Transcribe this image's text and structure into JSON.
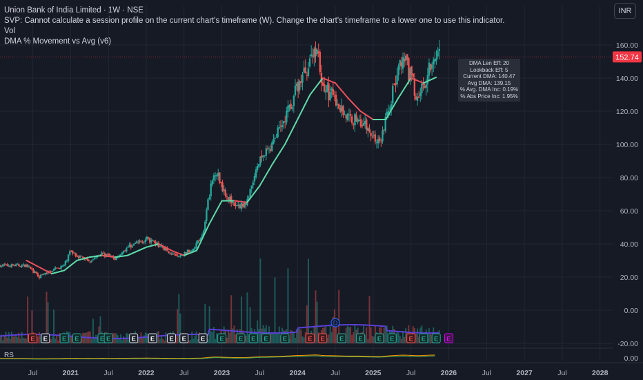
{
  "header": {
    "title": "Union Bank of India Limited · 1W · NSE",
    "svp_message": "SVP: Cannot calculate a session profile on the current chart's timeframe (W). Change the chart's timeframe to a lower one to use this indicator.",
    "vol_label": "Vol",
    "indicator_label": "DMA % Movement vs Avg (v6)",
    "currency_button": "INR"
  },
  "price_badge": "152.74",
  "info_box": {
    "line1": "DMA Len Eff: 20",
    "line2": "Lookback Eff: 5",
    "line3": "Current DMA: 140.47",
    "line4": "Avg DMA: 139.15",
    "line5": "% Avg. DMA Inc: 0.19%",
    "line6": "% Abs Price Inc: 1.95%"
  },
  "rs_pane": {
    "label": "RS",
    "tick_label": "0.00"
  },
  "colors": {
    "background": "#161a25",
    "up_candle": "#26a69a",
    "down_candle": "#ef5350",
    "dma_up": "#5ed9a8",
    "dma_down": "#e8505b",
    "volume_ma": "#5b3fd6",
    "price_badge": "#f23645",
    "grid": "#232734",
    "rs_line_1": "#ff9800",
    "rs_line_2": "#4caf50"
  },
  "chart_data": {
    "type": "candlestick",
    "symbol": "Union Bank of India Limited",
    "interval": "1W",
    "exchange": "NSE",
    "x_tick_labels": [
      "Jul",
      "2021",
      "Jul",
      "2022",
      "Jul",
      "2023",
      "Jul",
      "2024",
      "Jul",
      "2025",
      "Jul",
      "2026",
      "Jul",
      "2027",
      "Jul",
      "2028"
    ],
    "y_tick_labels": [
      "160.00",
      "140.00",
      "120.00",
      "100.00",
      "80.00",
      "60.00",
      "40.00",
      "20.00",
      "0.00",
      "-20.00"
    ],
    "ylim": [
      -20,
      165
    ],
    "last_price": 152.74,
    "price_path": [
      {
        "x": "2020-06",
        "y": 27
      },
      {
        "x": "2020-08",
        "y": 20
      },
      {
        "x": "2020-10",
        "y": 24
      },
      {
        "x": "2020-12",
        "y": 27
      },
      {
        "x": "2021-01",
        "y": 36
      },
      {
        "x": "2021-02",
        "y": 33
      },
      {
        "x": "2021-04",
        "y": 30
      },
      {
        "x": "2021-06",
        "y": 34
      },
      {
        "x": "2021-08",
        "y": 31
      },
      {
        "x": "2021-10",
        "y": 38
      },
      {
        "x": "2022-01",
        "y": 43
      },
      {
        "x": "2022-04",
        "y": 37
      },
      {
        "x": "2022-06",
        "y": 32
      },
      {
        "x": "2022-08",
        "y": 36
      },
      {
        "x": "2022-10",
        "y": 45
      },
      {
        "x": "2022-11",
        "y": 70
      },
      {
        "x": "2022-12",
        "y": 85
      },
      {
        "x": "2023-01",
        "y": 75
      },
      {
        "x": "2023-03",
        "y": 62
      },
      {
        "x": "2023-05",
        "y": 65
      },
      {
        "x": "2023-07",
        "y": 90
      },
      {
        "x": "2023-09",
        "y": 100
      },
      {
        "x": "2023-11",
        "y": 115
      },
      {
        "x": "2024-01",
        "y": 135
      },
      {
        "x": "2024-03",
        "y": 150
      },
      {
        "x": "2024-04",
        "y": 160
      },
      {
        "x": "2024-05",
        "y": 135
      },
      {
        "x": "2024-07",
        "y": 127
      },
      {
        "x": "2024-09",
        "y": 116
      },
      {
        "x": "2024-11",
        "y": 115
      },
      {
        "x": "2025-01",
        "y": 105
      },
      {
        "x": "2025-02",
        "y": 100
      },
      {
        "x": "2025-03",
        "y": 115
      },
      {
        "x": "2025-05",
        "y": 145
      },
      {
        "x": "2025-06",
        "y": 150
      },
      {
        "x": "2025-07",
        "y": 140
      },
      {
        "x": "2025-08",
        "y": 128
      },
      {
        "x": "2025-09",
        "y": 135
      },
      {
        "x": "2025-10",
        "y": 150
      },
      {
        "x": "2025-11",
        "y": 152.74
      }
    ],
    "dma_path": [
      {
        "x": "2020-06",
        "y": 30
      },
      {
        "x": "2020-08",
        "y": 26
      },
      {
        "x": "2020-10",
        "y": 22
      },
      {
        "x": "2020-12",
        "y": 24
      },
      {
        "x": "2021-02",
        "y": 30
      },
      {
        "x": "2021-04",
        "y": 32
      },
      {
        "x": "2021-06",
        "y": 33
      },
      {
        "x": "2021-08",
        "y": 32
      },
      {
        "x": "2021-10",
        "y": 33
      },
      {
        "x": "2022-01",
        "y": 38
      },
      {
        "x": "2022-03",
        "y": 40
      },
      {
        "x": "2022-05",
        "y": 36
      },
      {
        "x": "2022-07",
        "y": 33
      },
      {
        "x": "2022-09",
        "y": 36
      },
      {
        "x": "2022-11",
        "y": 52
      },
      {
        "x": "2023-01",
        "y": 66
      },
      {
        "x": "2023-03",
        "y": 66
      },
      {
        "x": "2023-05",
        "y": 65
      },
      {
        "x": "2023-07",
        "y": 75
      },
      {
        "x": "2023-09",
        "y": 88
      },
      {
        "x": "2023-11",
        "y": 100
      },
      {
        "x": "2024-01",
        "y": 115
      },
      {
        "x": "2024-03",
        "y": 130
      },
      {
        "x": "2024-05",
        "y": 140
      },
      {
        "x": "2024-07",
        "y": 137
      },
      {
        "x": "2024-09",
        "y": 128
      },
      {
        "x": "2024-11",
        "y": 120
      },
      {
        "x": "2025-01",
        "y": 115
      },
      {
        "x": "2025-03",
        "y": 115
      },
      {
        "x": "2025-05",
        "y": 128
      },
      {
        "x": "2025-07",
        "y": 140
      },
      {
        "x": "2025-09",
        "y": 137
      },
      {
        "x": "2025-11",
        "y": 140.47
      }
    ],
    "event_markers": [
      {
        "label": "E",
        "type": "loss",
        "x": "2020-07"
      },
      {
        "label": "E",
        "type": "neutral",
        "x": "2020-09"
      },
      {
        "label": "E",
        "type": "gain",
        "x": "2020-12"
      },
      {
        "label": "E",
        "type": "gain",
        "x": "2021-02"
      },
      {
        "label": "E",
        "type": "gain",
        "x": "2021-06"
      },
      {
        "label": "E",
        "type": "gain",
        "x": "2021-07"
      },
      {
        "label": "E",
        "type": "neutral",
        "x": "2021-11"
      },
      {
        "label": "E",
        "type": "neutral",
        "x": "2022-02"
      },
      {
        "label": "E",
        "type": "neutral",
        "x": "2022-05"
      },
      {
        "label": "E",
        "type": "neutral",
        "x": "2022-07"
      },
      {
        "label": "E",
        "type": "neutral",
        "x": "2022-10"
      },
      {
        "label": "E",
        "type": "gain",
        "x": "2023-01"
      },
      {
        "label": "E",
        "type": "gain",
        "x": "2023-04"
      },
      {
        "label": "E",
        "type": "gain",
        "x": "2023-06"
      },
      {
        "label": "E",
        "type": "gain",
        "x": "2023-08"
      },
      {
        "label": "E",
        "type": "gain",
        "x": "2023-11"
      },
      {
        "label": "E",
        "type": "loss",
        "x": "2024-03"
      },
      {
        "label": "E",
        "type": "loss",
        "x": "2024-05"
      },
      {
        "label": "E",
        "type": "gain",
        "x": "2024-08"
      },
      {
        "label": "E",
        "type": "gain",
        "x": "2024-11"
      },
      {
        "label": "E",
        "type": "gain",
        "x": "2025-02"
      },
      {
        "label": "E",
        "type": "gain",
        "x": "2025-04"
      },
      {
        "label": "E",
        "type": "loss",
        "x": "2025-07"
      },
      {
        "label": "E",
        "type": "gain",
        "x": "2025-09"
      },
      {
        "label": "E",
        "type": "gain",
        "x": "2025-11"
      },
      {
        "label": "E",
        "type": "future",
        "x": "2026-01"
      },
      {
        "label": "D",
        "type": "dividend",
        "x": "2024-07"
      }
    ]
  }
}
